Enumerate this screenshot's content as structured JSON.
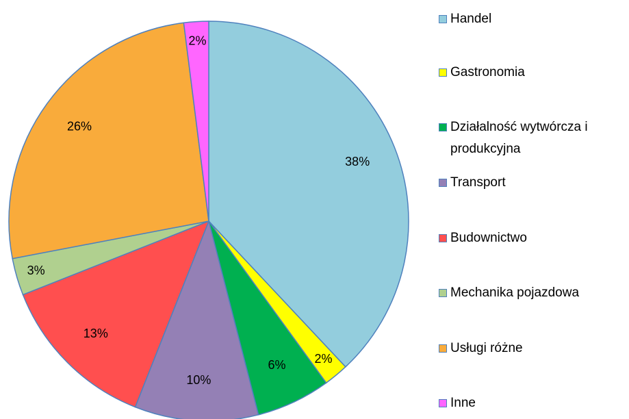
{
  "chart_data": {
    "type": "pie",
    "categories": [
      "Handel",
      "Gastronomia",
      "Działalność wytwórcza i produkcyjna",
      "Transport",
      "Budownictwo",
      "Mechanika pojazdowa",
      "Usługi różne",
      "Inne"
    ],
    "values": [
      38,
      2,
      6,
      10,
      13,
      3,
      26,
      2
    ],
    "value_labels": [
      "38%",
      "2%",
      "6%",
      "10%",
      "13%",
      "3%",
      "26%",
      "2%"
    ],
    "colors": [
      "#93cddd",
      "#ffff00",
      "#00b050",
      "#9480b5",
      "#ff4f4f",
      "#b0d08f",
      "#f9ab3b",
      "#ff66ff"
    ],
    "legend": "right"
  }
}
